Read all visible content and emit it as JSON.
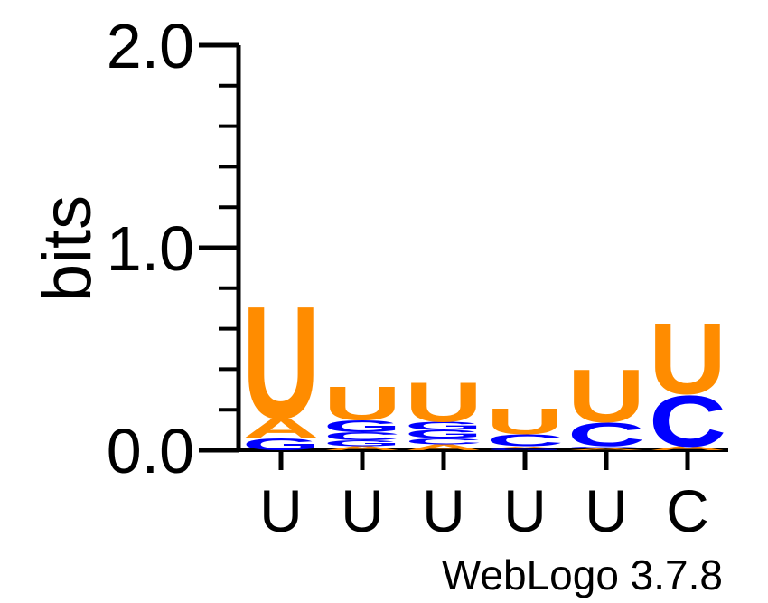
{
  "chart_data": {
    "type": "sequence-logo",
    "ylabel": "bits",
    "ylim": [
      0,
      2
    ],
    "y_ticks": [
      "0.0",
      "1.0",
      "2.0"
    ],
    "y_tick_values": [
      0,
      1,
      2
    ],
    "minor_tick_step": 0.2,
    "positions": [
      "U",
      "U",
      "U",
      "U",
      "U",
      "C"
    ],
    "colors": {
      "U": "#ff8c00",
      "A": "#ff8c00",
      "C": "#0000ff",
      "G": "#0000ff"
    },
    "stacks": [
      [
        {
          "letter": "G",
          "height": 0.06
        },
        {
          "letter": "A",
          "height": 0.1
        },
        {
          "letter": "U",
          "height": 0.57
        }
      ],
      [
        {
          "letter": "A",
          "height": 0.02
        },
        {
          "letter": "G",
          "height": 0.03
        },
        {
          "letter": "C",
          "height": 0.04
        },
        {
          "letter": "G",
          "height": 0.06
        },
        {
          "letter": "U",
          "height": 0.17
        }
      ],
      [
        {
          "letter": "A",
          "height": 0.03
        },
        {
          "letter": "C",
          "height": 0.03
        },
        {
          "letter": "G",
          "height": 0.04
        },
        {
          "letter": "G",
          "height": 0.04
        },
        {
          "letter": "U",
          "height": 0.2
        }
      ],
      [
        {
          "letter": "G",
          "height": 0.01
        },
        {
          "letter": "A",
          "height": 0.01
        },
        {
          "letter": "C",
          "height": 0.06
        },
        {
          "letter": "U",
          "height": 0.13
        }
      ],
      [
        {
          "letter": "A",
          "height": 0.01
        },
        {
          "letter": "G",
          "height": 0.01
        },
        {
          "letter": "C",
          "height": 0.12
        },
        {
          "letter": "U",
          "height": 0.27
        }
      ],
      [
        {
          "letter": "A",
          "height": 0.02
        },
        {
          "letter": "C",
          "height": 0.26
        },
        {
          "letter": "U",
          "height": 0.36
        }
      ]
    ]
  },
  "footer": {
    "credit": "WebLogo 3.7.8"
  }
}
